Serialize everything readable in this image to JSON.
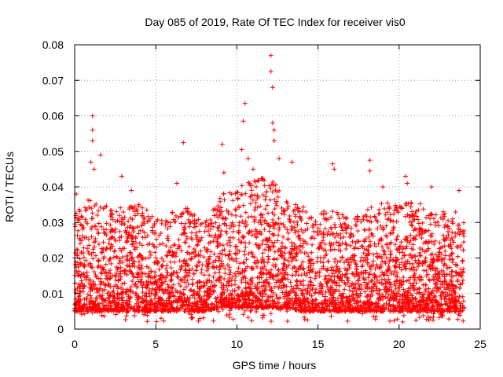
{
  "chart_data": {
    "type": "scatter",
    "title": "Day 085 of 2019, Rate Of TEC Index for receiver vis0",
    "xlabel": "GPS time / hours",
    "ylabel": "ROTI / TECUs",
    "xlim": [
      0,
      25
    ],
    "ylim": [
      0,
      0.08
    ],
    "xticks": [
      0,
      5,
      10,
      15,
      20,
      25
    ],
    "xtick_labels": [
      "0",
      "5",
      "10",
      "15",
      "20",
      "25"
    ],
    "yticks": [
      0,
      0.01,
      0.02,
      0.03,
      0.04,
      0.05,
      0.06,
      0.07,
      0.08
    ],
    "ytick_labels": [
      "0",
      "0.01",
      "0.02",
      "0.03",
      "0.04",
      "0.05",
      "0.06",
      "0.07",
      "0.08"
    ],
    "grid": true,
    "marker": "+",
    "series_color": "#ff0000",
    "data_x_range": [
      0,
      24
    ],
    "envelope": {
      "x": [
        0,
        1,
        2,
        3,
        4,
        5,
        6,
        7,
        8,
        9,
        10,
        11,
        12,
        13,
        14,
        15,
        16,
        17,
        18,
        19,
        20,
        21,
        22,
        23,
        24
      ],
      "y_upper": [
        0.033,
        0.037,
        0.035,
        0.034,
        0.036,
        0.031,
        0.033,
        0.035,
        0.03,
        0.038,
        0.04,
        0.042,
        0.044,
        0.036,
        0.035,
        0.033,
        0.034,
        0.031,
        0.034,
        0.036,
        0.035,
        0.036,
        0.034,
        0.033,
        0.033
      ],
      "y_lower": [
        0.005,
        0.005,
        0.005,
        0.005,
        0.005,
        0.005,
        0.005,
        0.005,
        0.005,
        0.006,
        0.006,
        0.006,
        0.006,
        0.006,
        0.005,
        0.005,
        0.005,
        0.005,
        0.005,
        0.005,
        0.005,
        0.005,
        0.005,
        0.005,
        0.005
      ]
    },
    "outliers": [
      {
        "x": 0.1,
        "y": 0.038
      },
      {
        "x": 1.1,
        "y": 0.06
      },
      {
        "x": 1.1,
        "y": 0.056
      },
      {
        "x": 1.1,
        "y": 0.053
      },
      {
        "x": 1.0,
        "y": 0.047
      },
      {
        "x": 1.2,
        "y": 0.045
      },
      {
        "x": 1.6,
        "y": 0.049
      },
      {
        "x": 2.9,
        "y": 0.043
      },
      {
        "x": 3.5,
        "y": 0.039
      },
      {
        "x": 6.3,
        "y": 0.041
      },
      {
        "x": 6.7,
        "y": 0.0525
      },
      {
        "x": 9.1,
        "y": 0.052
      },
      {
        "x": 9.2,
        "y": 0.044
      },
      {
        "x": 10.3,
        "y": 0.0505
      },
      {
        "x": 10.4,
        "y": 0.0585
      },
      {
        "x": 10.5,
        "y": 0.0635
      },
      {
        "x": 10.7,
        "y": 0.048
      },
      {
        "x": 11.0,
        "y": 0.045
      },
      {
        "x": 12.1,
        "y": 0.077
      },
      {
        "x": 12.1,
        "y": 0.0725
      },
      {
        "x": 12.2,
        "y": 0.068
      },
      {
        "x": 12.2,
        "y": 0.058
      },
      {
        "x": 12.3,
        "y": 0.056
      },
      {
        "x": 12.3,
        "y": 0.053
      },
      {
        "x": 12.6,
        "y": 0.048
      },
      {
        "x": 13.4,
        "y": 0.047
      },
      {
        "x": 15.9,
        "y": 0.0465
      },
      {
        "x": 16.0,
        "y": 0.045
      },
      {
        "x": 18.2,
        "y": 0.0475
      },
      {
        "x": 18.2,
        "y": 0.0445
      },
      {
        "x": 19.0,
        "y": 0.04
      },
      {
        "x": 20.4,
        "y": 0.043
      },
      {
        "x": 20.5,
        "y": 0.041
      },
      {
        "x": 22.0,
        "y": 0.04
      },
      {
        "x": 23.7,
        "y": 0.039
      }
    ],
    "typical_range": [
      0.005,
      0.035
    ]
  }
}
